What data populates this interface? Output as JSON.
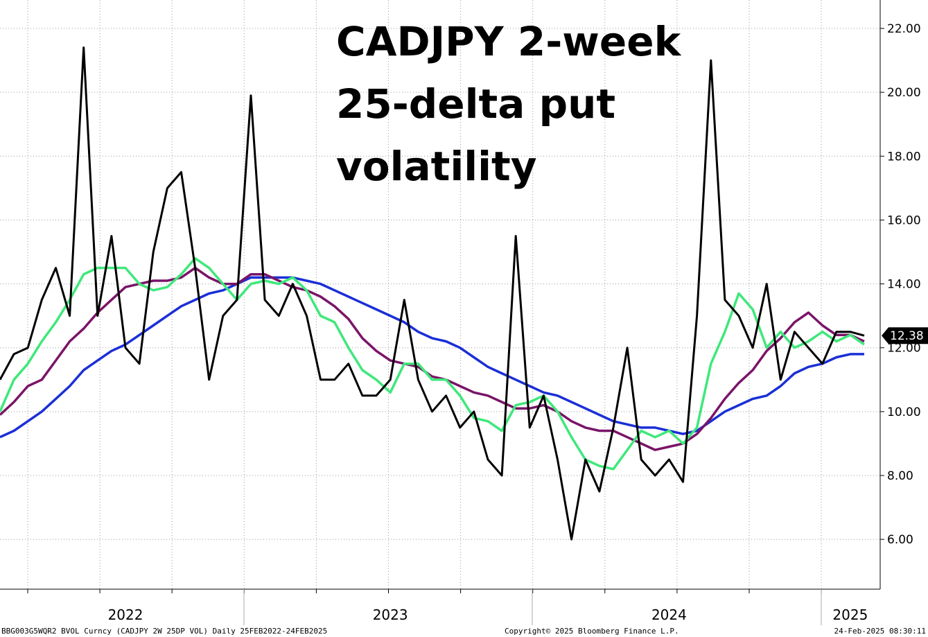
{
  "chart_data": {
    "type": "line",
    "title": [
      "CADJPY 2-week",
      "25-delta put",
      "volatility"
    ],
    "categories": [
      null,
      null,
      null,
      null,
      null,
      null,
      null,
      null,
      null,
      "2022",
      null,
      null,
      null,
      null,
      null,
      null,
      null,
      null,
      null,
      null,
      null,
      null,
      null,
      null,
      null,
      null,
      null,
      null,
      "2023",
      null,
      null,
      null,
      null,
      null,
      null,
      null,
      null,
      null,
      null,
      null,
      null,
      null,
      null,
      null,
      null,
      null,
      null,
      null,
      "2024",
      null,
      null,
      null,
      null,
      null,
      null,
      null,
      null,
      null,
      null,
      null,
      null,
      "2025",
      null
    ],
    "series": [
      {
        "color": "#000000",
        "values": [
          11.0,
          11.8,
          12.0,
          13.5,
          14.5,
          13.0,
          21.4,
          13.0,
          15.5,
          12.0,
          11.5,
          15.0,
          17.0,
          17.5,
          14.5,
          11.0,
          13.0,
          13.5,
          19.9,
          13.5,
          13.0,
          14.0,
          13.0,
          11.0,
          11.0,
          11.5,
          10.5,
          10.5,
          11.0,
          13.5,
          11.0,
          10.0,
          10.5,
          9.5,
          10.0,
          8.5,
          8.0,
          15.5,
          9.5,
          10.5,
          8.5,
          6.0,
          8.5,
          7.5,
          9.5,
          12.0,
          8.5,
          8.0,
          8.5,
          7.8,
          13.0,
          21.0,
          13.5,
          13.0,
          12.0,
          14.0,
          11.0,
          12.5,
          12.0,
          11.5,
          12.5,
          12.5,
          12.38
        ]
      },
      {
        "color": "#3ee87a",
        "values": [
          10.0,
          11.0,
          11.5,
          12.2,
          12.8,
          13.5,
          14.3,
          14.5,
          14.5,
          14.5,
          14.0,
          13.8,
          13.9,
          14.3,
          14.8,
          14.5,
          14.0,
          13.5,
          14.0,
          14.1,
          14.0,
          14.2,
          13.8,
          13.0,
          12.8,
          12.0,
          11.3,
          11.0,
          10.6,
          11.5,
          11.5,
          11.0,
          11.0,
          10.5,
          9.8,
          9.7,
          9.4,
          10.2,
          10.3,
          10.5,
          10.0,
          9.2,
          8.5,
          8.3,
          8.2,
          8.8,
          9.4,
          9.2,
          9.4,
          9.0,
          9.5,
          11.5,
          12.5,
          13.7,
          13.2,
          12.0,
          12.5,
          12.0,
          12.2,
          12.5,
          12.2,
          12.4,
          12.1
        ]
      },
      {
        "color": "#7a1468",
        "values": [
          9.9,
          10.3,
          10.8,
          11.0,
          11.6,
          12.2,
          12.6,
          13.1,
          13.5,
          13.9,
          14.0,
          14.1,
          14.1,
          14.2,
          14.5,
          14.2,
          14.0,
          14.0,
          14.3,
          14.3,
          14.1,
          13.9,
          13.8,
          13.6,
          13.3,
          12.9,
          12.3,
          11.9,
          11.6,
          11.5,
          11.4,
          11.1,
          11.0,
          10.8,
          10.6,
          10.5,
          10.3,
          10.1,
          10.1,
          10.2,
          10.0,
          9.7,
          9.5,
          9.4,
          9.4,
          9.2,
          9.0,
          8.8,
          8.9,
          9.0,
          9.3,
          9.8,
          10.4,
          10.9,
          11.3,
          11.9,
          12.3,
          12.8,
          13.1,
          12.7,
          12.4,
          12.4,
          12.2
        ]
      },
      {
        "color": "#1a2fd6",
        "values": [
          9.2,
          9.4,
          9.7,
          10.0,
          10.4,
          10.8,
          11.3,
          11.6,
          11.9,
          12.1,
          12.4,
          12.7,
          13.0,
          13.3,
          13.5,
          13.7,
          13.8,
          14.0,
          14.2,
          14.2,
          14.2,
          14.2,
          14.1,
          14.0,
          13.8,
          13.6,
          13.4,
          13.2,
          13.0,
          12.8,
          12.5,
          12.3,
          12.2,
          12.0,
          11.7,
          11.4,
          11.2,
          11.0,
          10.8,
          10.6,
          10.5,
          10.3,
          10.1,
          9.9,
          9.7,
          9.6,
          9.5,
          9.5,
          9.4,
          9.3,
          9.4,
          9.7,
          10.0,
          10.2,
          10.4,
          10.5,
          10.8,
          11.2,
          11.4,
          11.5,
          11.7,
          11.8,
          11.8
        ]
      }
    ],
    "ylim": [
      4.44,
      22.89
    ],
    "yticks": [
      {
        "value": 6,
        "label": "6.00"
      },
      {
        "value": 8,
        "label": "8.00"
      },
      {
        "value": 10,
        "label": "10.00"
      },
      {
        "value": 12,
        "label": "12.00"
      },
      {
        "value": 14,
        "label": "14.00"
      },
      {
        "value": 16,
        "label": "16.00"
      },
      {
        "value": 18,
        "label": "18.00"
      },
      {
        "value": 20,
        "label": "20.00"
      },
      {
        "value": 22,
        "label": "22.00"
      }
    ],
    "grid": true,
    "footer": [
      "BBG003G5WQR2 BVOL Curncy (CADJPY 2W 25DP VOL)  Daily 25FEB2022-24FEB2025",
      "Copyright© 2025 Bloomberg Finance L.P.",
      "24-Feb-2025 08:30:11"
    ]
  }
}
